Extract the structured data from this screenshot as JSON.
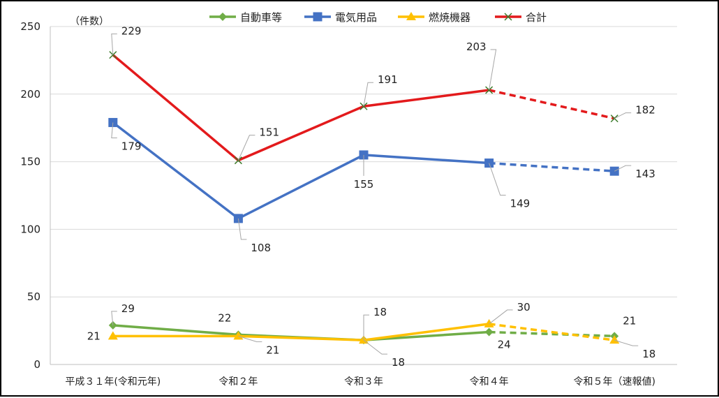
{
  "chart_data": {
    "type": "line",
    "y_unit_label": "（件数）",
    "categories": [
      "平成３１年(令和元年)",
      "令和２年",
      "令和３年",
      "令和４年",
      "令和５年（速報値)"
    ],
    "ylim": [
      0,
      250
    ],
    "yticks": [
      0,
      50,
      100,
      150,
      200,
      250
    ],
    "grid": true,
    "legend_position": "top",
    "dashed_from_index": 3,
    "series": [
      {
        "name": "自動車等",
        "values": [
          29,
          22,
          18,
          24,
          21
        ],
        "color": "#70ad47",
        "marker": "diamond"
      },
      {
        "name": "電気用品",
        "values": [
          179,
          108,
          155,
          149,
          143
        ],
        "color": "#4472c4",
        "marker": "square"
      },
      {
        "name": "燃焼機器",
        "values": [
          21,
          21,
          18,
          30,
          18
        ],
        "color": "#ffc000",
        "marker": "triangle"
      },
      {
        "name": "合計",
        "values": [
          229,
          151,
          191,
          203,
          182
        ],
        "color": "#e31a1c",
        "marker": "x"
      }
    ]
  }
}
